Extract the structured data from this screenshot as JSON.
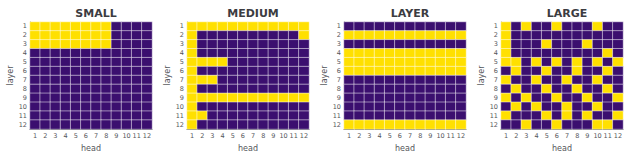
{
  "chart_data": [
    {
      "type": "heatmap",
      "title": "SMALL",
      "x_label": "head",
      "y_label": "layer",
      "x": [
        1,
        2,
        3,
        4,
        5,
        6,
        7,
        8,
        9,
        10,
        11,
        12
      ],
      "y": [
        1,
        2,
        3,
        4,
        5,
        6,
        7,
        8,
        9,
        10,
        11,
        12
      ],
      "colors": [
        "#3B0F6F",
        "#FFE000"
      ],
      "zlim": [
        0,
        1
      ],
      "cells": [
        [
          1,
          1,
          1,
          1,
          1,
          1,
          1,
          1,
          0,
          0,
          0,
          0
        ],
        [
          1,
          1,
          1,
          1,
          1,
          1,
          1,
          1,
          0,
          0,
          0,
          0
        ],
        [
          1,
          1,
          1,
          1,
          1,
          1,
          1,
          1,
          0,
          0,
          0,
          0
        ],
        [
          0,
          0,
          0,
          0,
          0,
          0,
          0,
          0,
          0,
          0,
          0,
          0
        ],
        [
          0,
          0,
          0,
          0,
          0,
          0,
          0,
          0,
          0,
          0,
          0,
          0
        ],
        [
          0,
          0,
          0,
          0,
          0,
          0,
          0,
          0,
          0,
          0,
          0,
          0
        ],
        [
          0,
          0,
          0,
          0,
          0,
          0,
          0,
          0,
          0,
          0,
          0,
          0
        ],
        [
          0,
          0,
          0,
          0,
          0,
          0,
          0,
          0,
          0,
          0,
          0,
          0
        ],
        [
          0,
          0,
          0,
          0,
          0,
          0,
          0,
          0,
          0,
          0,
          0,
          0
        ],
        [
          0,
          0,
          0,
          0,
          0,
          0,
          0,
          0,
          0,
          0,
          0,
          0
        ],
        [
          0,
          0,
          0,
          0,
          0,
          0,
          0,
          0,
          0,
          0,
          0,
          0
        ],
        [
          0,
          0,
          0,
          0,
          0,
          0,
          0,
          0,
          0,
          0,
          0,
          0
        ]
      ]
    },
    {
      "type": "heatmap",
      "title": "MEDIUM",
      "x_label": "head",
      "y_label": "layer",
      "x": [
        1,
        2,
        3,
        4,
        5,
        6,
        7,
        8,
        9,
        10,
        11,
        12
      ],
      "y": [
        1,
        2,
        3,
        4,
        5,
        6,
        7,
        8,
        9,
        10,
        11,
        12
      ],
      "colors": [
        "#3B0F6F",
        "#FFE000"
      ],
      "zlim": [
        0,
        1
      ],
      "cells": [
        [
          1,
          1,
          1,
          1,
          1,
          1,
          1,
          1,
          1,
          1,
          1,
          1
        ],
        [
          1,
          0,
          0,
          0,
          0,
          0,
          0,
          0,
          0,
          0,
          0,
          1
        ],
        [
          1,
          0,
          0,
          0,
          0,
          0,
          0,
          0,
          0,
          0,
          0,
          0
        ],
        [
          1,
          0,
          0,
          0,
          0,
          0,
          0,
          0,
          0,
          0,
          0,
          0
        ],
        [
          1,
          1,
          1,
          1,
          0,
          0,
          0,
          0,
          0,
          0,
          0,
          0
        ],
        [
          1,
          0,
          0,
          0,
          0,
          0,
          0,
          0,
          0,
          0,
          0,
          0
        ],
        [
          1,
          1,
          1,
          0,
          0,
          0,
          0,
          0,
          0,
          0,
          0,
          0
        ],
        [
          1,
          0,
          0,
          0,
          0,
          0,
          0,
          0,
          0,
          0,
          0,
          0
        ],
        [
          1,
          1,
          1,
          1,
          1,
          1,
          1,
          1,
          1,
          1,
          1,
          1
        ],
        [
          1,
          0,
          0,
          0,
          0,
          0,
          0,
          0,
          0,
          0,
          0,
          0
        ],
        [
          1,
          1,
          0,
          0,
          0,
          0,
          0,
          0,
          0,
          0,
          0,
          0
        ],
        [
          1,
          0,
          0,
          0,
          0,
          0,
          0,
          0,
          0,
          0,
          0,
          0
        ]
      ]
    },
    {
      "type": "heatmap",
      "title": "LAYER",
      "x_label": "head",
      "y_label": "layer",
      "x": [
        1,
        2,
        3,
        4,
        5,
        6,
        7,
        8,
        9,
        10,
        11,
        12
      ],
      "y": [
        1,
        2,
        3,
        4,
        5,
        6,
        7,
        8,
        9,
        10,
        11,
        12
      ],
      "colors": [
        "#3B0F6F",
        "#FFE000"
      ],
      "zlim": [
        0,
        1
      ],
      "cells": [
        [
          0,
          0,
          0,
          0,
          0,
          0,
          0,
          0,
          0,
          0,
          0,
          0
        ],
        [
          1,
          1,
          1,
          1,
          1,
          1,
          1,
          1,
          1,
          1,
          1,
          1
        ],
        [
          0,
          0,
          0,
          0,
          0,
          0,
          0,
          0,
          0,
          0,
          0,
          0
        ],
        [
          1,
          1,
          1,
          1,
          1,
          1,
          1,
          1,
          1,
          1,
          1,
          1
        ],
        [
          1,
          1,
          1,
          1,
          1,
          1,
          1,
          1,
          1,
          1,
          1,
          1
        ],
        [
          1,
          1,
          1,
          1,
          1,
          1,
          1,
          1,
          1,
          1,
          1,
          1
        ],
        [
          0,
          0,
          0,
          0,
          0,
          0,
          0,
          0,
          0,
          0,
          0,
          0
        ],
        [
          0,
          0,
          0,
          0,
          0,
          0,
          0,
          0,
          0,
          0,
          0,
          0
        ],
        [
          0,
          0,
          0,
          0,
          0,
          0,
          0,
          0,
          0,
          0,
          0,
          0
        ],
        [
          0,
          0,
          0,
          0,
          0,
          0,
          0,
          0,
          0,
          0,
          0,
          0
        ],
        [
          0,
          0,
          0,
          0,
          0,
          0,
          0,
          0,
          0,
          0,
          0,
          0
        ],
        [
          1,
          1,
          1,
          1,
          1,
          1,
          1,
          1,
          1,
          1,
          1,
          1
        ]
      ]
    },
    {
      "type": "heatmap",
      "title": "LARGE",
      "x_label": "head",
      "y_label": "layer",
      "x": [
        1,
        2,
        3,
        4,
        5,
        6,
        7,
        8,
        9,
        10,
        11,
        12
      ],
      "y": [
        1,
        2,
        3,
        4,
        5,
        6,
        7,
        8,
        9,
        10,
        11,
        12
      ],
      "colors": [
        "#3B0F6F",
        "#FFE000"
      ],
      "zlim": [
        0,
        1
      ],
      "cells": [
        [
          1,
          0,
          1,
          0,
          0,
          1,
          0,
          0,
          0,
          1,
          0,
          0
        ],
        [
          1,
          0,
          0,
          0,
          0,
          0,
          0,
          0,
          0,
          0,
          0,
          0
        ],
        [
          1,
          0,
          0,
          0,
          1,
          0,
          0,
          0,
          1,
          0,
          0,
          0
        ],
        [
          1,
          0,
          0,
          0,
          0,
          0,
          0,
          0,
          0,
          0,
          1,
          0
        ],
        [
          1,
          1,
          0,
          1,
          0,
          1,
          0,
          1,
          0,
          1,
          0,
          1
        ],
        [
          0,
          1,
          0,
          0,
          1,
          0,
          0,
          1,
          0,
          0,
          1,
          0
        ],
        [
          1,
          0,
          0,
          1,
          0,
          0,
          1,
          0,
          0,
          1,
          0,
          0
        ],
        [
          0,
          1,
          0,
          0,
          1,
          0,
          0,
          1,
          0,
          0,
          1,
          0
        ],
        [
          1,
          0,
          1,
          0,
          0,
          1,
          0,
          0,
          1,
          0,
          0,
          1
        ],
        [
          0,
          1,
          0,
          1,
          0,
          0,
          1,
          0,
          0,
          1,
          0,
          0
        ],
        [
          1,
          0,
          0,
          0,
          1,
          0,
          1,
          0,
          1,
          0,
          0,
          1
        ],
        [
          0,
          0,
          1,
          0,
          0,
          1,
          0,
          0,
          0,
          1,
          1,
          0
        ]
      ]
    }
  ]
}
